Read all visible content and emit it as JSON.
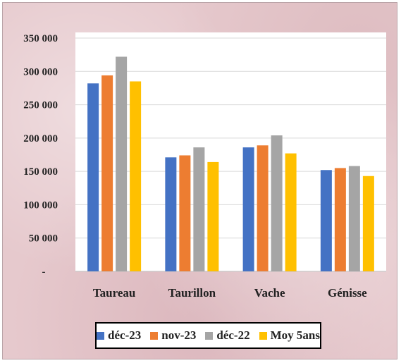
{
  "chart_data": {
    "type": "bar",
    "categories": [
      "Taureau",
      "Taurillon",
      "Vache",
      "Génisse"
    ],
    "series": [
      {
        "name": "déc-23",
        "color": "#4472C4",
        "values": [
          282000,
          171000,
          186000,
          152000
        ]
      },
      {
        "name": "nov-23",
        "color": "#ED7D31",
        "values": [
          294000,
          174000,
          189000,
          155000
        ]
      },
      {
        "name": "déc-22",
        "color": "#A5A5A5",
        "values": [
          322000,
          186000,
          204000,
          158000
        ]
      },
      {
        "name": "Moy 5ans",
        "color": "#FFC000",
        "values": [
          285000,
          164000,
          177000,
          143000
        ]
      }
    ],
    "ylim": [
      0,
      350000
    ],
    "yticks": [
      {
        "value": 0,
        "label": "-"
      },
      {
        "value": 50000,
        "label": "50 000"
      },
      {
        "value": 100000,
        "label": "100 000"
      },
      {
        "value": 150000,
        "label": "150 000"
      },
      {
        "value": 200000,
        "label": "200 000"
      },
      {
        "value": 250000,
        "label": "250 000"
      },
      {
        "value": 300000,
        "label": "300 000"
      },
      {
        "value": 350000,
        "label": "350 000"
      }
    ],
    "title": "",
    "xlabel": "",
    "ylabel": "",
    "grid": true,
    "legend_position": "bottom"
  }
}
